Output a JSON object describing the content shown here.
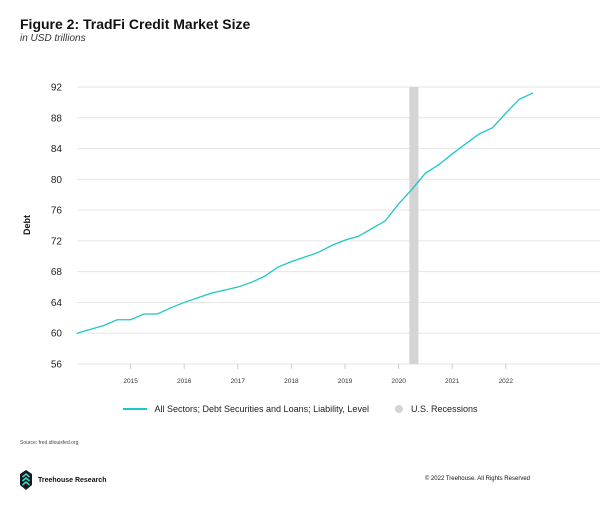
{
  "header": {
    "title": "Figure 2: TradFi Credit Market Size",
    "subtitle": "in USD trillions"
  },
  "chart_data": {
    "type": "line",
    "title": "Figure 2: TradFi Credit Market Size",
    "subtitle": "in USD trillions",
    "xlabel": "",
    "ylabel": "Debt",
    "xlim": [
      2014.0,
      2023.0
    ],
    "ylim": [
      56,
      92
    ],
    "yticks": [
      56,
      60,
      64,
      68,
      72,
      76,
      80,
      84,
      88,
      92
    ],
    "xticks": [
      2015,
      2016,
      2017,
      2018,
      2019,
      2020,
      2021,
      2022
    ],
    "grid": "horizontal",
    "legend_position": "bottom",
    "series": [
      {
        "name": "All Sectors; Debt Securities and Loans; Liability, Level",
        "color": "#1ec7c7",
        "x": [
          2014.0,
          2014.25,
          2014.5,
          2014.75,
          2015.0,
          2015.25,
          2015.5,
          2015.75,
          2016.0,
          2016.25,
          2016.5,
          2016.75,
          2017.0,
          2017.25,
          2017.5,
          2017.75,
          2018.0,
          2018.25,
          2018.5,
          2018.75,
          2019.0,
          2019.25,
          2019.5,
          2019.75,
          2020.0,
          2020.25,
          2020.5,
          2020.75,
          2021.0,
          2021.25,
          2021.5,
          2021.75,
          2022.0,
          2022.25,
          2022.5
        ],
        "y": [
          60.0,
          60.5,
          61.0,
          61.75,
          61.75,
          62.5,
          62.5,
          63.3,
          64.0,
          64.6,
          65.2,
          65.6,
          66.0,
          66.6,
          67.4,
          68.6,
          69.3,
          69.9,
          70.5,
          71.4,
          72.1,
          72.6,
          73.6,
          74.6,
          76.8,
          78.7,
          80.8,
          81.9,
          83.3,
          84.6,
          85.9,
          86.7,
          88.6,
          90.4,
          91.2
        ]
      }
    ],
    "shaded_regions": [
      {
        "name": "U.S. Recessions",
        "color": "#d4d4d4",
        "x": [
          2020.2,
          2020.37
        ]
      }
    ]
  },
  "legend": {
    "series_label": "All Sectors; Debt Securities and Loans; Liability, Level",
    "recession_label": "U.S. Recessions"
  },
  "footer": {
    "source": "Source: fred.stlouisfed.org",
    "brand": "Treehouse Research",
    "copyright": "© 2022 Treehouse. All Rights Reserved"
  }
}
